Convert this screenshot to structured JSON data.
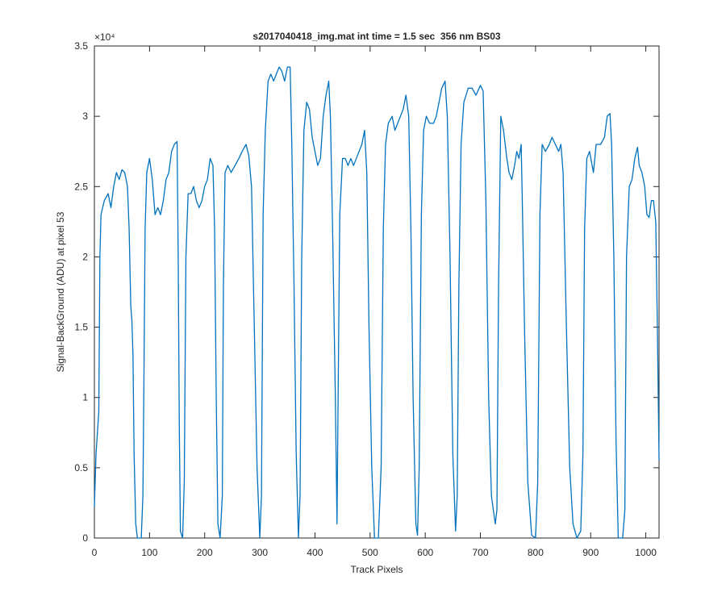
{
  "chart_data": {
    "type": "line",
    "title": "s2017040418_img.mat int time = 1.5 sec  356 nm BS03",
    "x_label": "Track Pixels",
    "y_label": "Signal-BackGround (ADU) at pixel 53",
    "y_multiplier": "×10⁴",
    "color": "#0072bd",
    "grid": false,
    "xlim": [
      0,
      1024
    ],
    "ylim": [
      0,
      35000
    ],
    "xticks": [
      0,
      100,
      200,
      300,
      400,
      500,
      600,
      700,
      800,
      900,
      1000
    ],
    "yticks": [
      0,
      {
        "value": 5000,
        "label": "0.5"
      },
      {
        "value": 10000,
        "label": "1"
      },
      {
        "value": 15000,
        "label": "1.5"
      },
      {
        "value": 20000,
        "label": "2"
      },
      {
        "value": 25000,
        "label": "2.5"
      },
      {
        "value": 30000,
        "label": "3"
      },
      {
        "value": 35000,
        "label": "3.5"
      }
    ],
    "x": [
      0,
      3,
      8,
      10,
      12,
      18,
      25,
      30,
      35,
      40,
      45,
      50,
      55,
      60,
      63,
      66,
      68,
      70,
      72,
      75,
      78,
      85,
      88,
      90,
      92,
      95,
      100,
      105,
      110,
      115,
      120,
      125,
      130,
      135,
      140,
      145,
      150,
      152,
      154,
      156,
      160,
      163,
      166,
      170,
      175,
      180,
      185,
      190,
      195,
      200,
      205,
      210,
      215,
      218,
      221,
      224,
      228,
      232,
      234,
      237,
      242,
      248,
      255,
      262,
      268,
      275,
      280,
      285,
      290,
      295,
      300,
      303,
      306,
      310,
      315,
      320,
      325,
      330,
      335,
      340,
      345,
      350,
      355,
      358,
      362,
      366,
      370,
      373,
      376,
      380,
      385,
      390,
      395,
      400,
      405,
      410,
      415,
      420,
      425,
      428,
      432,
      437,
      440,
      442,
      445,
      450,
      455,
      460,
      465,
      470,
      475,
      480,
      485,
      490,
      494,
      498,
      503,
      508,
      515,
      520,
      524,
      528,
      533,
      540,
      545,
      550,
      555,
      560,
      565,
      570,
      574,
      578,
      583,
      586,
      589,
      593,
      597,
      602,
      608,
      615,
      620,
      625,
      630,
      636,
      640,
      645,
      650,
      655,
      658,
      661,
      665,
      670,
      678,
      685,
      692,
      700,
      705,
      710,
      715,
      720,
      727,
      730,
      733,
      737,
      742,
      748,
      752,
      757,
      762,
      766,
      770,
      774,
      776,
      780,
      786,
      793,
      800,
      804,
      808,
      812,
      818,
      825,
      830,
      836,
      842,
      846,
      850,
      856,
      862,
      868,
      875,
      882,
      886,
      889,
      893,
      898,
      905,
      910,
      918,
      925,
      930,
      935,
      938,
      942,
      946,
      950,
      958,
      962,
      965,
      970,
      975,
      980,
      985,
      988,
      993,
      998,
      1002,
      1006,
      1010,
      1014,
      1018,
      1021,
      1024
    ],
    "values": [
      2200,
      6000,
      9000,
      20000,
      23000,
      24000,
      24500,
      23500,
      25000,
      26000,
      25500,
      26200,
      26000,
      25000,
      22000,
      16500,
      15500,
      13000,
      6000,
      1000,
      0,
      0,
      3000,
      12000,
      22000,
      26000,
      27000,
      25500,
      23000,
      23500,
      23000,
      24000,
      25500,
      26000,
      27500,
      28000,
      28200,
      20000,
      8000,
      500,
      0,
      4000,
      20000,
      24500,
      24500,
      25000,
      24000,
      23500,
      24000,
      25000,
      25500,
      27000,
      26500,
      22000,
      10000,
      1000,
      0,
      3000,
      18000,
      26000,
      26500,
      26000,
      26500,
      27000,
      27500,
      28000,
      27200,
      25000,
      15000,
      5000,
      0,
      3000,
      23000,
      29000,
      32500,
      33000,
      32500,
      33000,
      33500,
      33200,
      32500,
      33500,
      33500,
      28000,
      18000,
      6000,
      0,
      3000,
      20000,
      29000,
      31000,
      30500,
      28500,
      27500,
      26500,
      27000,
      30000,
      31500,
      32500,
      30000,
      22000,
      10000,
      1000,
      10000,
      23000,
      27000,
      27000,
      26500,
      27000,
      26500,
      27000,
      27500,
      28000,
      29000,
      26000,
      15000,
      5000,
      0,
      0,
      5000,
      22000,
      28000,
      29500,
      30000,
      29000,
      29500,
      30000,
      30500,
      31500,
      30000,
      22000,
      10000,
      1000,
      200,
      5000,
      23000,
      29000,
      30000,
      29500,
      29500,
      30000,
      31000,
      32000,
      32500,
      30000,
      20000,
      6000,
      500,
      3000,
      18000,
      28000,
      31000,
      32000,
      32000,
      31500,
      32200,
      31800,
      24000,
      10000,
      3000,
      1000,
      2000,
      18000,
      30000,
      29000,
      27000,
      26000,
      25500,
      26500,
      27500,
      27000,
      28000,
      24000,
      15000,
      4000,
      200,
      0,
      4000,
      23000,
      28000,
      27500,
      28000,
      28500,
      28000,
      27500,
      28000,
      26000,
      15000,
      5000,
      1000,
      0,
      500,
      6000,
      22000,
      27000,
      27500,
      26000,
      28000,
      28000,
      28500,
      30000,
      30200,
      28000,
      20000,
      7000,
      0,
      0,
      2000,
      20000,
      25000,
      25500,
      27000,
      27800,
      26500,
      26000,
      25000,
      23000,
      22800,
      24000,
      24000,
      22500,
      15000,
      5500
    ]
  }
}
